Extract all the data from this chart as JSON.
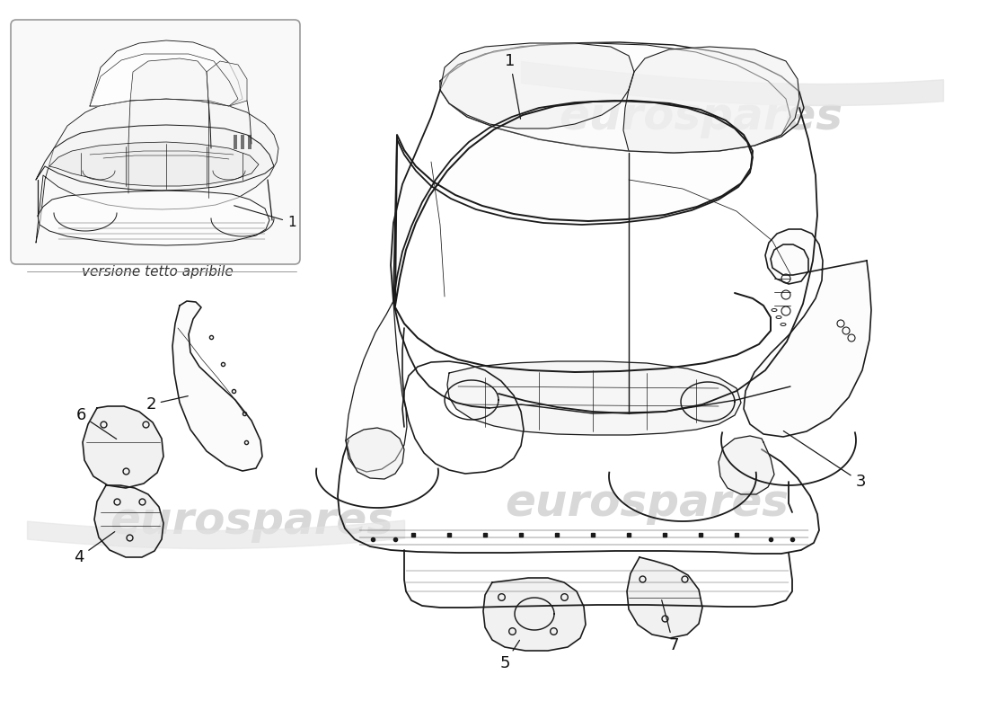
{
  "bg_color": "#ffffff",
  "line_color": "#1a1a1a",
  "fill_light": "#f2f2f2",
  "fill_white": "#ffffff",
  "watermark_text": "eurospares",
  "watermark_color_main": "#d8d8d8",
  "watermark_color_light": "#e8e8e8",
  "inset_border_color": "#999999",
  "inset_bg": "#f9f9f9",
  "inset_caption": "versione tetto apribile",
  "label_color": "#111111",
  "lw_body": 1.4,
  "lw_detail": 0.7,
  "lw_thin": 0.5,
  "label_fs": 13,
  "caption_fs": 11
}
